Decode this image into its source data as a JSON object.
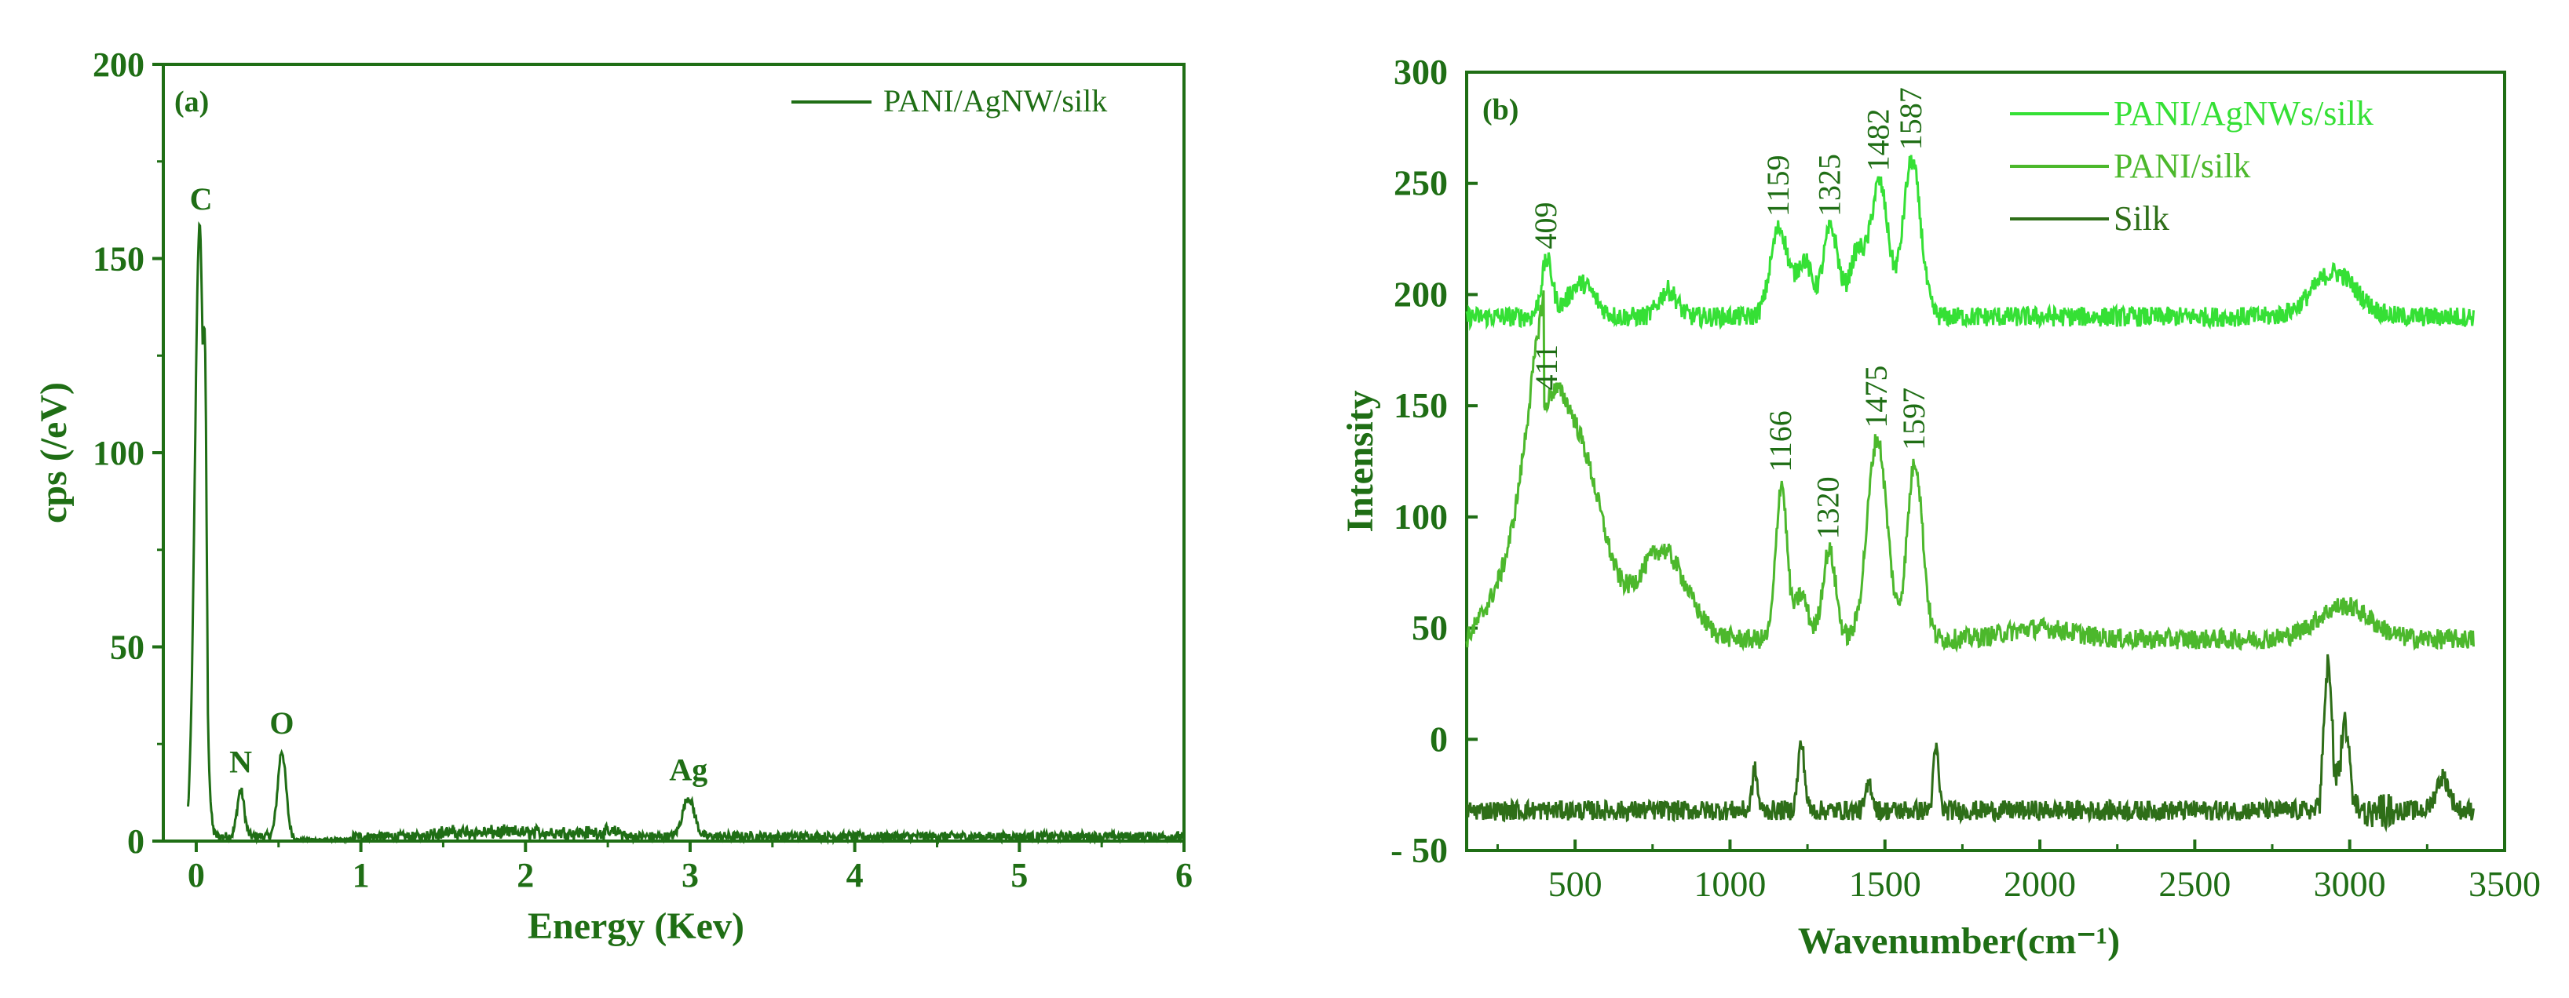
{
  "chart_data": [
    {
      "type": "line",
      "panel_label": "(a)",
      "xlabel": "Energy (Kev)",
      "ylabel": "cps (/eV)",
      "xlim": [
        -0.2,
        6
      ],
      "ylim": [
        0,
        200
      ],
      "x_ticks": [
        "0",
        "1",
        "2",
        "3",
        "4",
        "5",
        "6"
      ],
      "y_ticks": [
        "0",
        "50",
        "100",
        "150",
        "200"
      ],
      "legend": {
        "position": "top-right",
        "entries": [
          "PANI/AgNW/silk"
        ]
      },
      "grid": false,
      "color": "#1f6e15",
      "series": [
        {
          "name": "PANI/AgNW/silk",
          "peaks": [
            {
              "label": "C",
              "x": 0.02,
              "y": 157,
              "width": 0.04
            },
            {
              "label": "N",
              "x": 0.27,
              "y": 12,
              "width": 0.03
            },
            {
              "label": "O",
              "x": 0.52,
              "y": 22,
              "width": 0.035
            },
            {
              "label": "Ag",
              "x": 2.99,
              "y": 10,
              "width": 0.05
            }
          ],
          "baseline": 1.5
        }
      ]
    },
    {
      "type": "line",
      "panel_label": "(b)",
      "xlabel": "Wavenumber(cm⁻¹)",
      "ylabel": "Intensity",
      "xlim": [
        150,
        3500
      ],
      "ylim": [
        -50,
        300
      ],
      "x_ticks": [
        "500",
        "1000",
        "1500",
        "2000",
        "2500",
        "3000",
        "3500"
      ],
      "y_ticks": [
        "- 50",
        "0",
        "50",
        "100",
        "150",
        "200",
        "250",
        "300"
      ],
      "legend": {
        "position": "top-right",
        "entries": [
          "PANI/AgNWs/silk",
          "PANI/silk",
          "Silk"
        ]
      },
      "grid": false,
      "series": [
        {
          "name": "PANI/AgNWs/silk",
          "color": "#35e035",
          "base": 190,
          "annotations": [
            "409",
            "1159",
            "1325",
            "1482",
            "1587"
          ],
          "peaks": [
            {
              "x": 409,
              "h": 25,
              "w": 25
            },
            {
              "x": 520,
              "h": 15,
              "w": 60
            },
            {
              "x": 800,
              "h": 12,
              "w": 40
            },
            {
              "x": 1159,
              "h": 40,
              "w": 40
            },
            {
              "x": 1240,
              "h": 25,
              "w": 35
            },
            {
              "x": 1325,
              "h": 40,
              "w": 35
            },
            {
              "x": 1410,
              "h": 28,
              "w": 35
            },
            {
              "x": 1482,
              "h": 60,
              "w": 40
            },
            {
              "x": 1587,
              "h": 70,
              "w": 40
            },
            {
              "x": 2950,
              "h": 20,
              "w": 100
            }
          ]
        },
        {
          "name": "PANI/silk",
          "color": "#4cb82c",
          "base": 45,
          "annotations": [
            "411",
            "1166",
            "1320",
            "1475",
            "1597"
          ],
          "peaks": [
            {
              "x": 411,
              "h": 90,
              "w": 90
            },
            {
              "x": 530,
              "h": 70,
              "w": 100
            },
            {
              "x": 780,
              "h": 40,
              "w": 110
            },
            {
              "x": 1166,
              "h": 70,
              "w": 25
            },
            {
              "x": 1230,
              "h": 20,
              "w": 30
            },
            {
              "x": 1320,
              "h": 40,
              "w": 30
            },
            {
              "x": 1475,
              "h": 90,
              "w": 45
            },
            {
              "x": 1597,
              "h": 80,
              "w": 35
            },
            {
              "x": 2000,
              "h": 5,
              "w": 150
            },
            {
              "x": 2980,
              "h": 15,
              "w": 120
            }
          ]
        },
        {
          "name": "Silk",
          "color": "#2e6e18",
          "base": -32,
          "annotations": [],
          "peaks": [
            {
              "x": 1080,
              "h": 18,
              "w": 12
            },
            {
              "x": 1230,
              "h": 30,
              "w": 15
            },
            {
              "x": 1450,
              "h": 12,
              "w": 15
            },
            {
              "x": 1665,
              "h": 28,
              "w": 12
            },
            {
              "x": 2930,
              "h": 65,
              "w": 18
            },
            {
              "x": 2985,
              "h": 40,
              "w": 20
            },
            {
              "x": 3300,
              "h": 15,
              "w": 30
            }
          ]
        }
      ]
    }
  ]
}
